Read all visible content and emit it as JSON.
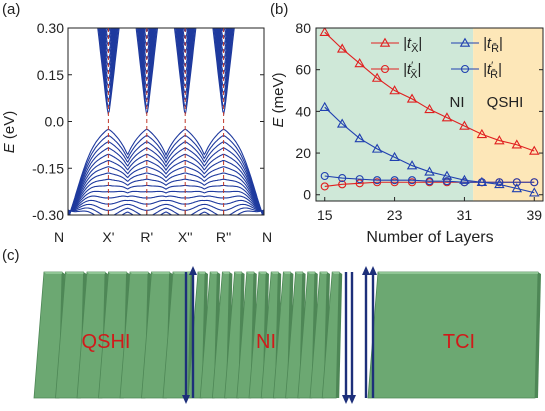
{
  "panels": {
    "a": {
      "label": "(a)"
    },
    "b": {
      "label": "(b)"
    },
    "c": {
      "label": "(c)"
    }
  },
  "chart_data": [
    {
      "panel": "(a)",
      "type": "line",
      "ylabel": "E (eV)",
      "ylabel_italic": "E",
      "ylabel_unit": " (eV)",
      "ylim": [
        -0.3,
        0.3
      ],
      "yticks": [
        "0.30",
        "0.15",
        "0.0",
        "-0.15",
        "-0.30"
      ],
      "ytick_values": [
        0.3,
        0.15,
        0.0,
        -0.15,
        -0.3
      ],
      "xticks": [
        "N",
        "X'",
        "R'",
        "X''",
        "R''",
        "N"
      ],
      "xtick_positions": [
        0,
        1,
        2,
        3,
        4,
        5
      ],
      "dirac_points": [
        "X'",
        "R'",
        "X''",
        "R''"
      ],
      "line_color": "#1f3a9e",
      "dash_color": "#c0392b",
      "description": "slab band structure with gap closings at X', R', X'', R''"
    },
    {
      "panel": "(b)",
      "type": "line",
      "xlabel": "Number of Layers",
      "ylabel_italic": "E",
      "ylabel_unit": " (meV)",
      "xlim": [
        14,
        40
      ],
      "ylim": [
        -3,
        80
      ],
      "xticks": [
        15,
        23,
        31,
        39
      ],
      "yticks": [
        0,
        20,
        40,
        60,
        80
      ],
      "regions": [
        {
          "label": "NI",
          "from": 14,
          "to": 32,
          "color": "#cfe8d8"
        },
        {
          "label": "QSHI",
          "from": 32,
          "to": 40,
          "color": "#fde7b8"
        }
      ],
      "series": [
        {
          "name": "|t_X̄|",
          "marker": "triangle",
          "color": "#e02020",
          "x": [
            15,
            17,
            19,
            21,
            23,
            25,
            27,
            29,
            31,
            33,
            35,
            37,
            39
          ],
          "y": [
            78,
            70,
            63,
            56,
            50,
            46,
            41,
            37,
            33,
            29,
            26,
            24,
            21
          ]
        },
        {
          "name": "|t'_X̄|",
          "marker": "circle",
          "color": "#e02020",
          "x": [
            15,
            17,
            19,
            21,
            23,
            25,
            27,
            29,
            31,
            33,
            35,
            37,
            39
          ],
          "y": [
            4,
            5,
            5.5,
            6,
            6,
            6,
            6,
            6,
            6,
            6,
            6,
            6,
            6
          ]
        },
        {
          "name": "|t_R̄|",
          "marker": "triangle",
          "color": "#2040b0",
          "x": [
            15,
            17,
            19,
            21,
            23,
            25,
            27,
            29,
            31,
            33,
            35,
            37,
            39
          ],
          "y": [
            42,
            34,
            27,
            22,
            18,
            14,
            11,
            9,
            7,
            6,
            5,
            3,
            1
          ]
        },
        {
          "name": "|t'_R̄|",
          "marker": "circle",
          "color": "#2040b0",
          "x": [
            15,
            17,
            19,
            21,
            23,
            25,
            27,
            29,
            31,
            33,
            35,
            37,
            39
          ],
          "y": [
            9,
            8,
            7.5,
            7,
            7,
            7,
            6.5,
            6.5,
            6,
            6,
            6,
            6,
            6
          ]
        }
      ],
      "legend": [
        {
          "series": 0,
          "base": "|t",
          "sub": "X̄",
          "sup": "",
          "close": "|"
        },
        {
          "series": 2,
          "base": "|t",
          "sub": "R̄",
          "sup": "",
          "close": "|"
        },
        {
          "series": 1,
          "base": "|t",
          "sub": "X̄",
          "sup": "′",
          "close": "|"
        },
        {
          "series": 3,
          "base": "|t",
          "sub": "R̄",
          "sup": "′",
          "close": "|"
        }
      ]
    }
  ],
  "schematic": {
    "panel": "(c)",
    "regions": [
      {
        "label": "QSHI",
        "slabs": 7
      },
      {
        "label": "NI",
        "slabs": 12
      },
      {
        "label": "TCI",
        "slabs": 1
      }
    ],
    "slab_color": "#6ca872",
    "slab_top_color": "#8fc594",
    "slab_side_color": "#4e8756",
    "label_color": "#d11a1a",
    "arrow_color": "#1d2f7a"
  }
}
